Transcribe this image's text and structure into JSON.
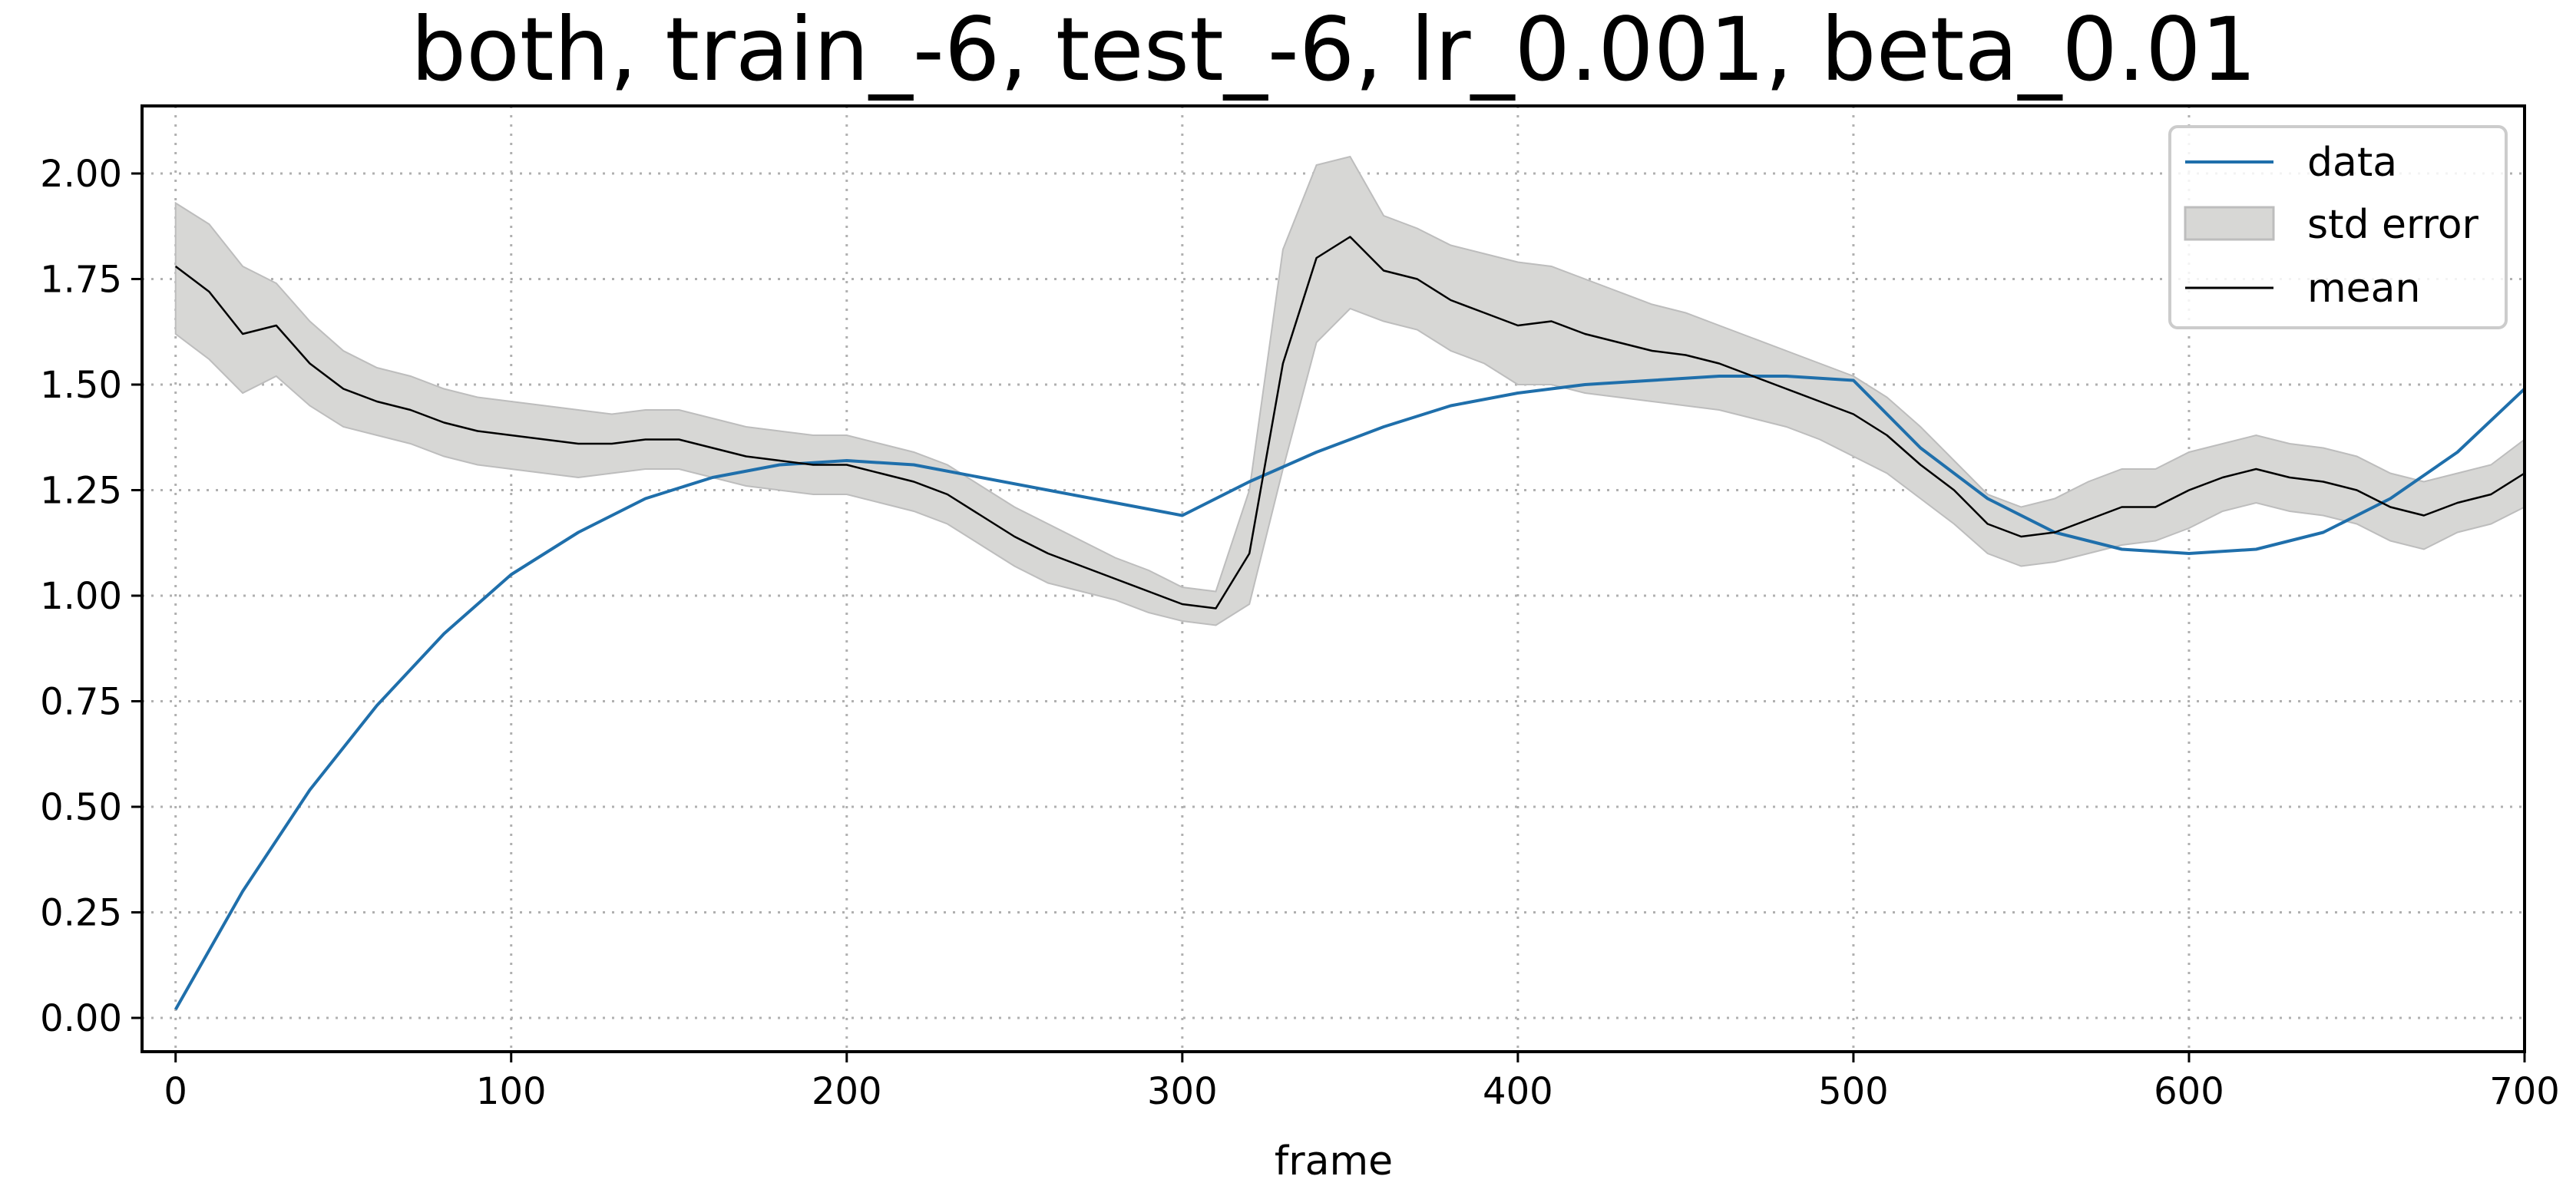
{
  "chart_data": {
    "type": "line",
    "title": "both, train_-6, test_-6, lr_0.001, beta_0.01",
    "xlabel": "frame",
    "ylabel": "",
    "xlim": [
      -10,
      700
    ],
    "ylim": [
      -0.08,
      2.16
    ],
    "x_ticks": [
      0,
      100,
      200,
      300,
      400,
      500,
      600,
      700
    ],
    "x_tick_labels": [
      "0",
      "100",
      "200",
      "300",
      "400",
      "500",
      "600",
      "700"
    ],
    "y_ticks": [
      0.0,
      0.25,
      0.5,
      0.75,
      1.0,
      1.25,
      1.5,
      1.75,
      2.0
    ],
    "y_tick_labels": [
      "0.00",
      "0.25",
      "0.50",
      "0.75",
      "1.00",
      "1.25",
      "1.50",
      "1.75",
      "2.00"
    ],
    "grid": true,
    "legend": {
      "position": "top-right",
      "entries": [
        "data",
        "std error",
        "mean"
      ]
    },
    "colors": {
      "data": "#1f6fab",
      "mean": "#000000",
      "std_error_fill": "#d7d7d5",
      "std_error_edge": "#bdbdbd",
      "grid": "#b0b0b0"
    },
    "series": [
      {
        "name": "data",
        "x": [
          0,
          20,
          40,
          60,
          80,
          100,
          120,
          140,
          160,
          180,
          200,
          220,
          240,
          260,
          280,
          300,
          320,
          340,
          360,
          380,
          400,
          420,
          440,
          460,
          480,
          500,
          520,
          540,
          560,
          580,
          600,
          620,
          640,
          660,
          680,
          700
        ],
        "y": [
          0.02,
          0.3,
          0.54,
          0.74,
          0.91,
          1.05,
          1.15,
          1.23,
          1.28,
          1.31,
          1.32,
          1.31,
          1.28,
          1.25,
          1.22,
          1.19,
          1.27,
          1.34,
          1.4,
          1.45,
          1.48,
          1.5,
          1.51,
          1.52,
          1.52,
          1.51,
          1.35,
          1.23,
          1.15,
          1.11,
          1.1,
          1.11,
          1.15,
          1.23,
          1.34,
          1.49
        ]
      },
      {
        "name": "mean",
        "x": [
          0,
          10,
          20,
          30,
          40,
          50,
          60,
          70,
          80,
          90,
          100,
          110,
          120,
          130,
          140,
          150,
          160,
          170,
          180,
          190,
          200,
          210,
          220,
          230,
          240,
          250,
          260,
          270,
          280,
          290,
          300,
          310,
          320,
          330,
          340,
          350,
          360,
          370,
          380,
          390,
          400,
          410,
          420,
          430,
          440,
          450,
          460,
          470,
          480,
          490,
          500,
          510,
          520,
          530,
          540,
          550,
          560,
          570,
          580,
          590,
          600,
          610,
          620,
          630,
          640,
          650,
          660,
          670,
          680,
          690,
          700
        ],
        "y": [
          1.78,
          1.72,
          1.62,
          1.64,
          1.55,
          1.49,
          1.46,
          1.44,
          1.41,
          1.39,
          1.38,
          1.37,
          1.36,
          1.36,
          1.37,
          1.37,
          1.35,
          1.33,
          1.32,
          1.31,
          1.31,
          1.29,
          1.27,
          1.24,
          1.19,
          1.14,
          1.1,
          1.07,
          1.04,
          1.01,
          0.98,
          0.97,
          1.1,
          1.55,
          1.8,
          1.85,
          1.77,
          1.75,
          1.7,
          1.67,
          1.64,
          1.65,
          1.62,
          1.6,
          1.58,
          1.57,
          1.55,
          1.52,
          1.49,
          1.46,
          1.43,
          1.38,
          1.31,
          1.25,
          1.17,
          1.14,
          1.15,
          1.18,
          1.21,
          1.21,
          1.25,
          1.28,
          1.3,
          1.28,
          1.27,
          1.25,
          1.21,
          1.19,
          1.22,
          1.24,
          1.29
        ]
      },
      {
        "name": "std error",
        "x": [
          0,
          10,
          20,
          30,
          40,
          50,
          60,
          70,
          80,
          90,
          100,
          110,
          120,
          130,
          140,
          150,
          160,
          170,
          180,
          190,
          200,
          210,
          220,
          230,
          240,
          250,
          260,
          270,
          280,
          290,
          300,
          310,
          320,
          330,
          340,
          350,
          360,
          370,
          380,
          390,
          400,
          410,
          420,
          430,
          440,
          450,
          460,
          470,
          480,
          490,
          500,
          510,
          520,
          530,
          540,
          550,
          560,
          570,
          580,
          590,
          600,
          610,
          620,
          630,
          640,
          650,
          660,
          670,
          680,
          690,
          700
        ],
        "upper": [
          1.93,
          1.88,
          1.78,
          1.74,
          1.65,
          1.58,
          1.54,
          1.52,
          1.49,
          1.47,
          1.46,
          1.45,
          1.44,
          1.43,
          1.44,
          1.44,
          1.42,
          1.4,
          1.39,
          1.38,
          1.38,
          1.36,
          1.34,
          1.31,
          1.26,
          1.21,
          1.17,
          1.13,
          1.09,
          1.06,
          1.02,
          1.01,
          1.25,
          1.82,
          2.02,
          2.04,
          1.9,
          1.87,
          1.83,
          1.81,
          1.79,
          1.78,
          1.75,
          1.72,
          1.69,
          1.67,
          1.64,
          1.61,
          1.58,
          1.55,
          1.52,
          1.47,
          1.4,
          1.32,
          1.24,
          1.21,
          1.23,
          1.27,
          1.3,
          1.3,
          1.34,
          1.36,
          1.38,
          1.36,
          1.35,
          1.33,
          1.29,
          1.27,
          1.29,
          1.31,
          1.37
        ],
        "lower": [
          1.62,
          1.56,
          1.48,
          1.52,
          1.45,
          1.4,
          1.38,
          1.36,
          1.33,
          1.31,
          1.3,
          1.29,
          1.28,
          1.29,
          1.3,
          1.3,
          1.28,
          1.26,
          1.25,
          1.24,
          1.24,
          1.22,
          1.2,
          1.17,
          1.12,
          1.07,
          1.03,
          1.01,
          0.99,
          0.96,
          0.94,
          0.93,
          0.98,
          1.3,
          1.6,
          1.68,
          1.65,
          1.63,
          1.58,
          1.55,
          1.5,
          1.5,
          1.48,
          1.47,
          1.46,
          1.45,
          1.44,
          1.42,
          1.4,
          1.37,
          1.33,
          1.29,
          1.23,
          1.17,
          1.1,
          1.07,
          1.08,
          1.1,
          1.12,
          1.13,
          1.16,
          1.2,
          1.22,
          1.2,
          1.19,
          1.17,
          1.13,
          1.11,
          1.15,
          1.17,
          1.21
        ]
      }
    ]
  }
}
